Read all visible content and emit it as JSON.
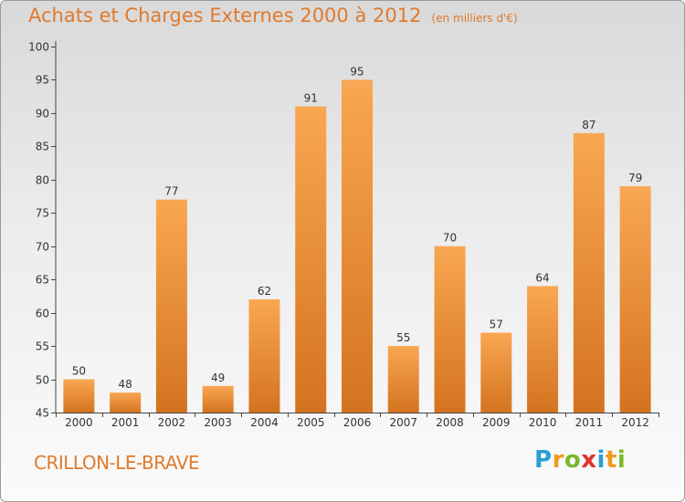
{
  "title": "Achats et Charges Externes 2000 à 2012",
  "unit": "(en milliers d'€)",
  "commune": "CRILLON-LE-BRAVE",
  "logo": {
    "text": "Proxiti",
    "letters": [
      "P",
      "r",
      "o",
      "x",
      "i",
      "t",
      "i"
    ],
    "colors": [
      "#2a9fd6",
      "#f29a1f",
      "#7ab929",
      "#e5322d",
      "#2a9fd6",
      "#f29a1f",
      "#7ab929"
    ]
  },
  "colors": {
    "bar_light": "#f9a752",
    "bar_dark": "#d4731f",
    "accent": "#e07a2c"
  },
  "chart_data": {
    "type": "bar",
    "categories": [
      "2000",
      "2001",
      "2002",
      "2003",
      "2004",
      "2005",
      "2006",
      "2007",
      "2008",
      "2009",
      "2010",
      "2011",
      "2012"
    ],
    "values": [
      50,
      48,
      77,
      49,
      62,
      91,
      95,
      55,
      70,
      57,
      64,
      87,
      79
    ],
    "title": "Achats et Charges Externes 2000 à 2012",
    "ylim": [
      45,
      100
    ],
    "yticks": [
      45,
      50,
      55,
      60,
      65,
      70,
      75,
      80,
      85,
      90,
      95,
      100
    ],
    "grid": false,
    "data_labels": true
  }
}
